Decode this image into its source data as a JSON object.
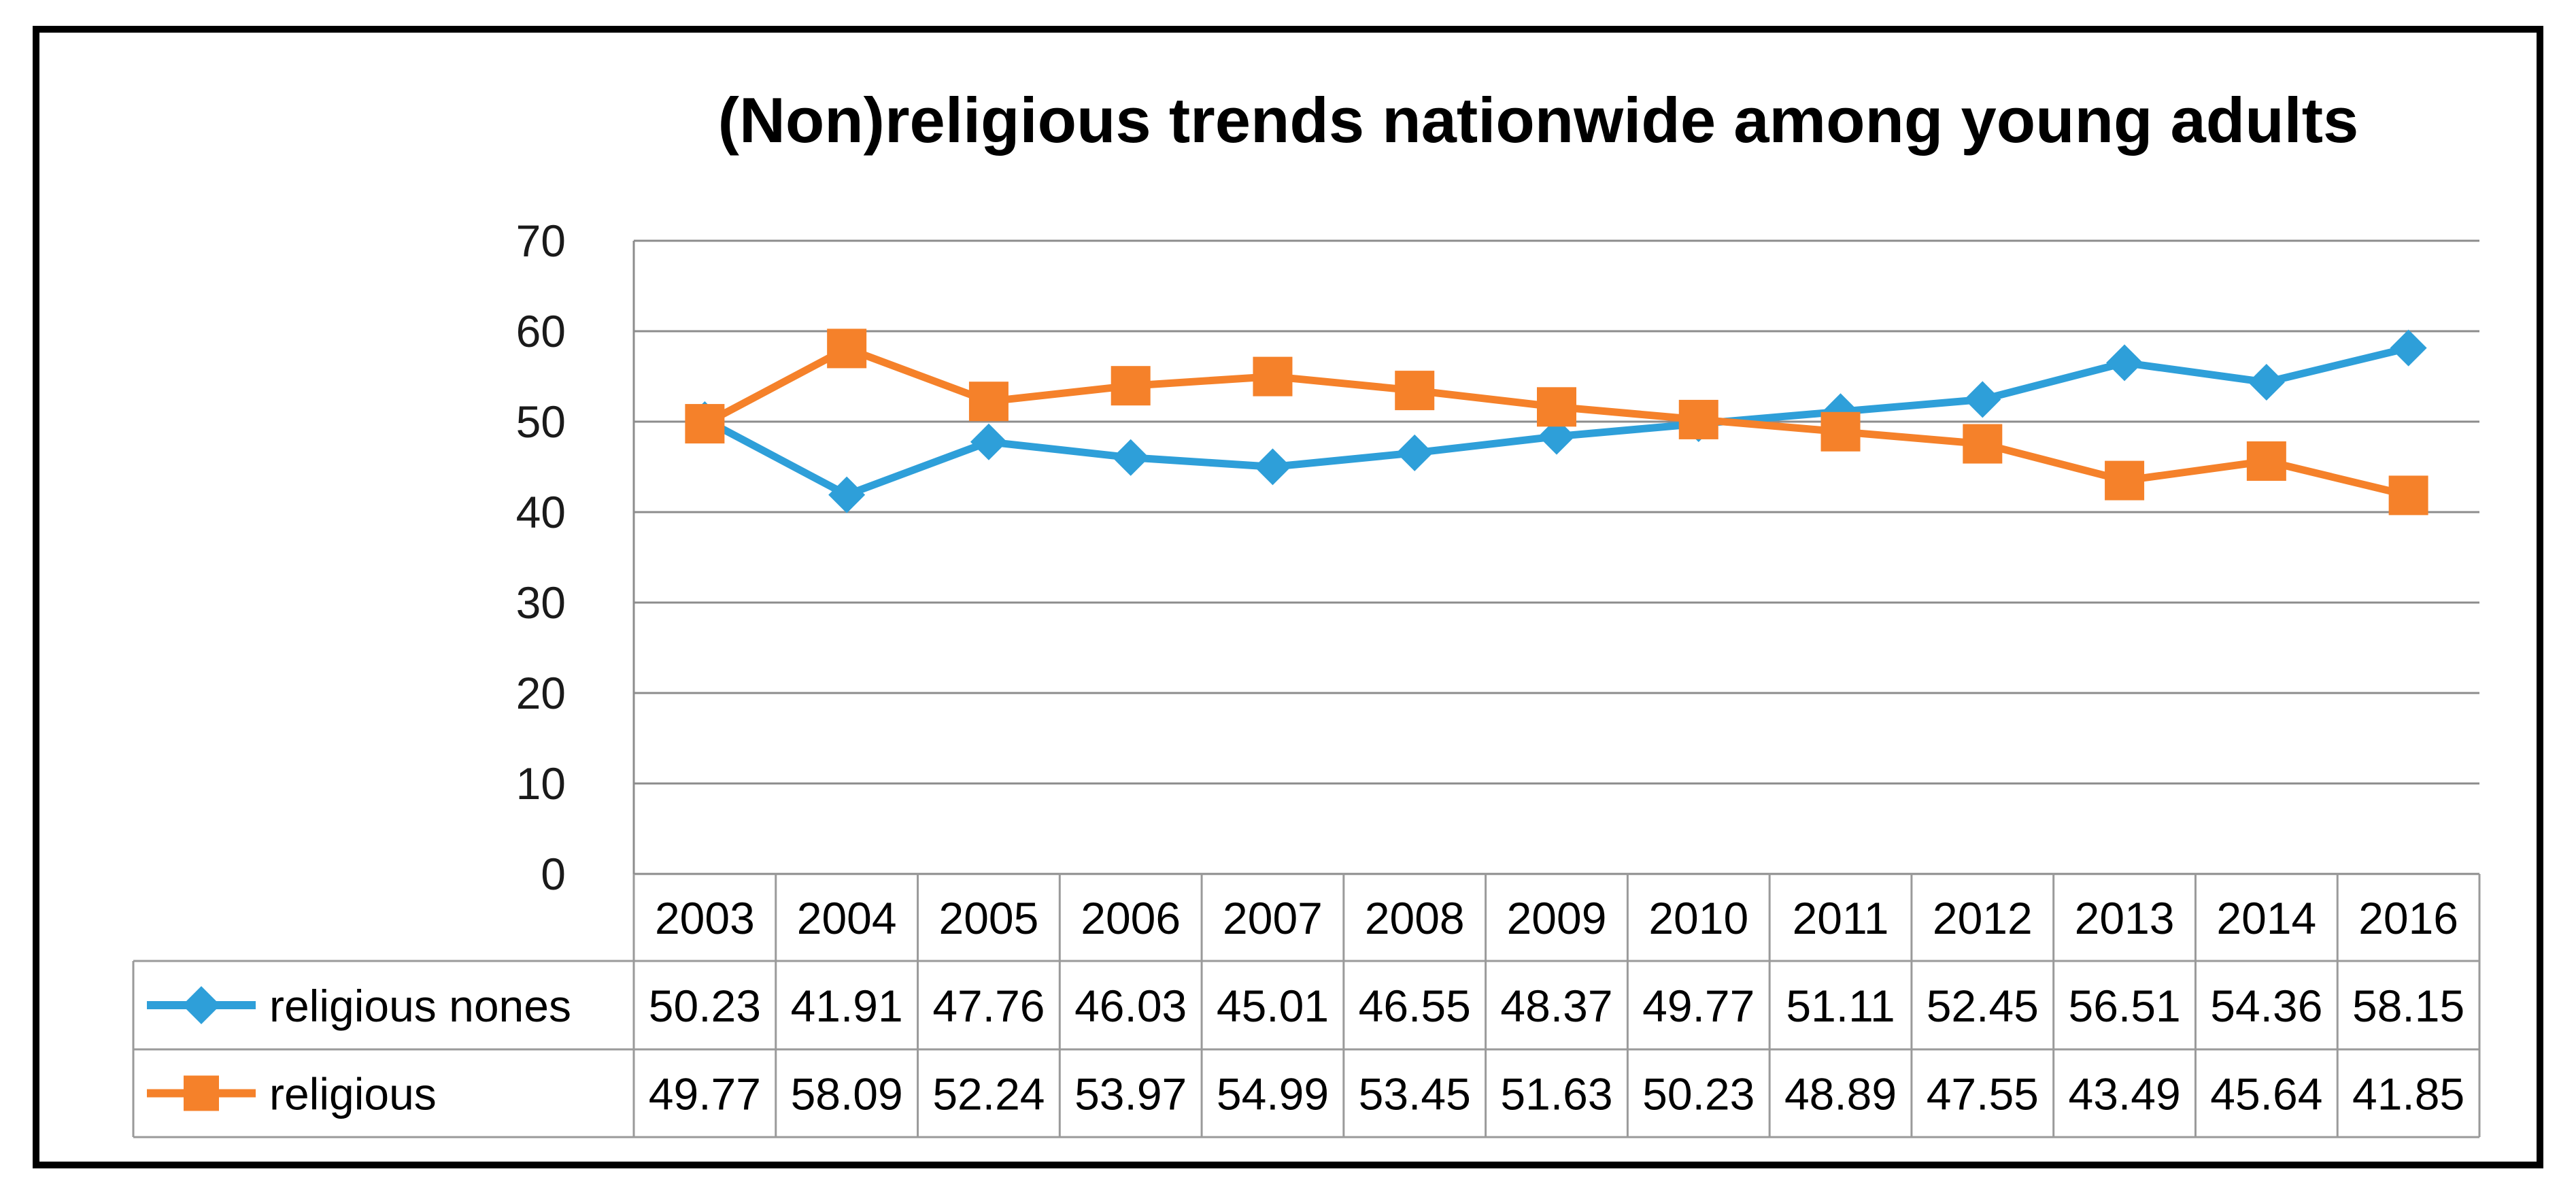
{
  "chart_data": {
    "type": "line",
    "title": "(Non)religious trends nationwide among young adults",
    "xlabel": "",
    "ylabel": "",
    "ylim": [
      0,
      70
    ],
    "yticks": [
      0,
      10,
      20,
      30,
      40,
      50,
      60,
      70
    ],
    "grid": true,
    "legend": "data-table",
    "categories": [
      "2003",
      "2004",
      "2005",
      "2006",
      "2007",
      "2008",
      "2009",
      "2010",
      "2011",
      "2012",
      "2013",
      "2014",
      "2016"
    ],
    "series": [
      {
        "name": "religious nones",
        "color": "#2e9fd9",
        "marker": "diamond",
        "values": [
          50.23,
          41.91,
          47.76,
          46.03,
          45.01,
          46.55,
          48.37,
          49.77,
          51.11,
          52.45,
          56.51,
          54.36,
          58.15
        ],
        "labels": [
          "50.23",
          "41.91",
          "47.76",
          "46.03",
          "45.01",
          "46.55",
          "48.37",
          "49.77",
          "51.11",
          "52.45",
          "56.51",
          "54.36",
          "58.15"
        ]
      },
      {
        "name": "religious",
        "color": "#f5812a",
        "marker": "square",
        "values": [
          49.77,
          58.09,
          52.24,
          53.97,
          54.99,
          53.45,
          51.63,
          50.23,
          48.89,
          47.55,
          43.49,
          45.64,
          41.85
        ],
        "labels": [
          "49.77",
          "58.09",
          "52.24",
          "53.97",
          "54.99",
          "53.45",
          "51.63",
          "50.23",
          "48.89",
          "47.55",
          "43.49",
          "45.64",
          "41.85"
        ]
      }
    ]
  }
}
